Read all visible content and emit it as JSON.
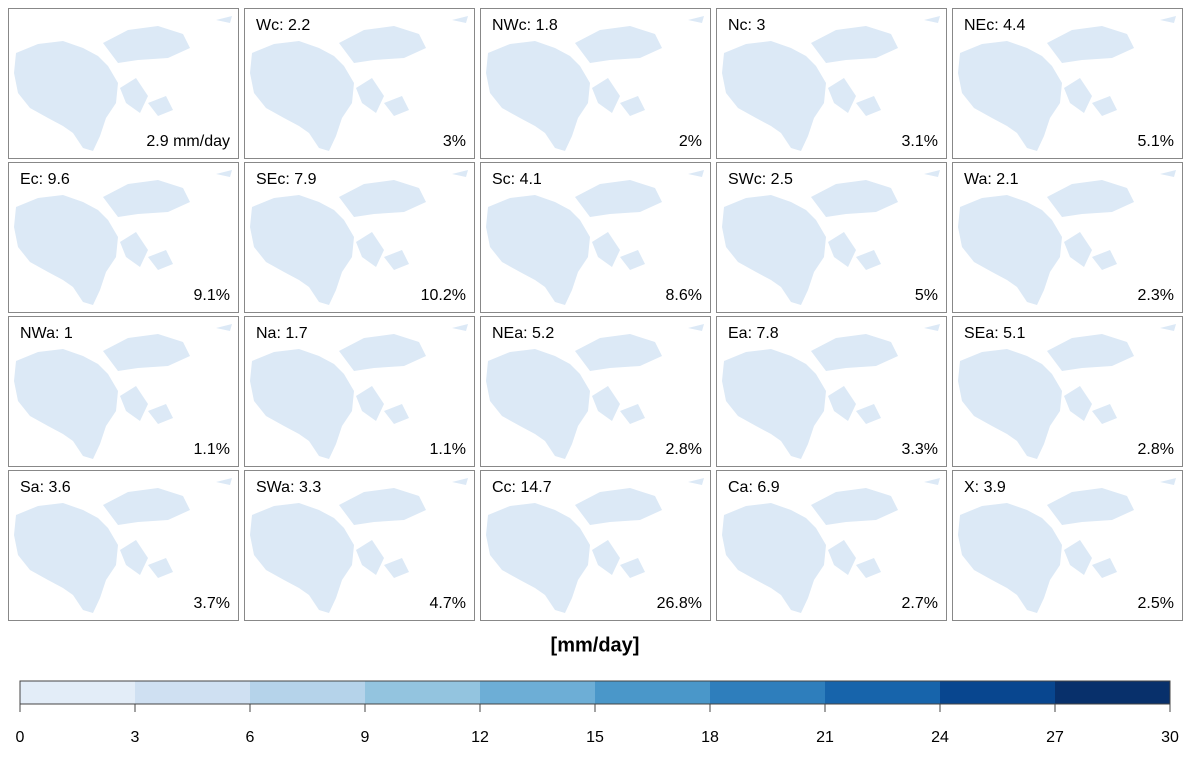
{
  "panels": [
    {
      "corner": "2.9 mm/day"
    },
    {
      "title": "Wc: 2.2",
      "corner": "3%"
    },
    {
      "title": "NWc: 1.8",
      "corner": "2%"
    },
    {
      "title": "Nc: 3",
      "corner": "3.1%"
    },
    {
      "title": "NEc: 4.4",
      "corner": "5.1%"
    },
    {
      "title": "Ec: 9.6",
      "corner": "9.1%"
    },
    {
      "title": "SEc: 7.9",
      "corner": "10.2%"
    },
    {
      "title": "Sc: 4.1",
      "corner": "8.6%"
    },
    {
      "title": "SWc: 2.5",
      "corner": "5%"
    },
    {
      "title": "Wa: 2.1",
      "corner": "2.3%"
    },
    {
      "title": "NWa: 1",
      "corner": "1.1%"
    },
    {
      "title": "Na: 1.7",
      "corner": "1.1%"
    },
    {
      "title": "NEa: 5.2",
      "corner": "2.8%"
    },
    {
      "title": "Ea: 7.8",
      "corner": "3.3%"
    },
    {
      "title": "SEa: 5.1",
      "corner": "2.8%"
    },
    {
      "title": "Sa: 3.6",
      "corner": "3.7%"
    },
    {
      "title": "SWa: 3.3",
      "corner": "4.7%"
    },
    {
      "title": "Cc: 14.7",
      "corner": "26.8%"
    },
    {
      "title": "Ca: 6.9",
      "corner": "2.7%"
    },
    {
      "title": "X: 3.9",
      "corner": "2.5%"
    }
  ],
  "colorbar": {
    "title": "[mm/day]",
    "ticks": [
      0,
      3,
      6,
      9,
      12,
      15,
      18,
      21,
      24,
      27,
      30
    ],
    "colors": [
      "#e3edf8",
      "#cfe0f2",
      "#b5d3ea",
      "#93c4df",
      "#6daed6",
      "#4a97c9",
      "#2e7ebc",
      "#1764ab",
      "#08468f",
      "#08306b"
    ]
  }
}
